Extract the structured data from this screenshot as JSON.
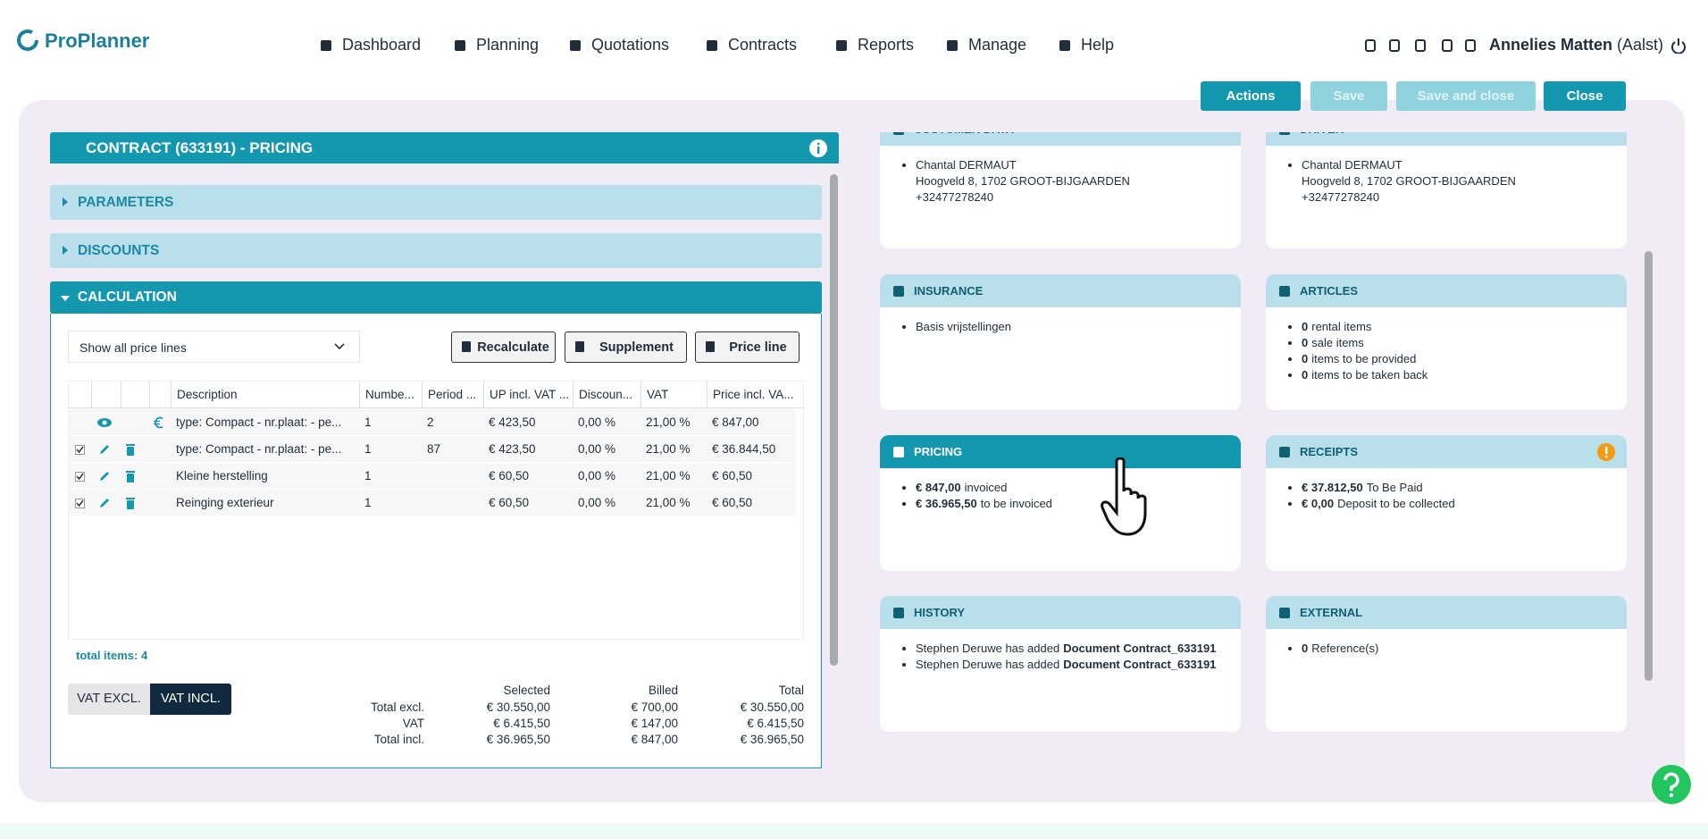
{
  "header": {
    "logo": "ProPlanner",
    "nav": [
      "Dashboard",
      "Planning",
      "Quotations",
      "Contracts",
      "Reports",
      "Manage",
      "Help"
    ],
    "user": {
      "name": "Annelies Matten",
      "location": "(Aalst)"
    }
  },
  "toolbar": {
    "actions": "Actions",
    "save": "Save",
    "save_and_close": "Save and close",
    "close": "Close"
  },
  "panel": {
    "title": "CONTRACT (633191) - PRICING",
    "sections": [
      "PARAMETERS",
      "DISCOUNTS",
      "CALCULATION"
    ],
    "filter": "Show all price lines",
    "buttons": [
      "Recalculate",
      "Supplement",
      "Price line"
    ],
    "table": {
      "columns": [
        "Description",
        "Numbe...",
        "Period ...",
        "UP incl. VAT ...",
        "Discoun...",
        "VAT",
        "Price incl. VA..."
      ],
      "rows": [
        {
          "editable": false,
          "cells": [
            "type: Compact - nr.plaat: - pe...",
            "1",
            "2",
            "€ 423,50",
            "0,00 %",
            "21,00 %",
            "€ 847,00"
          ]
        },
        {
          "editable": true,
          "cells": [
            "type: Compact - nr.plaat: - pe...",
            "1",
            "87",
            "€ 423,50",
            "0,00 %",
            "21,00 %",
            "€ 36.844,50"
          ]
        },
        {
          "editable": true,
          "cells": [
            "Kleine herstelling",
            "1",
            "",
            "€ 60,50",
            "0,00 %",
            "21,00 %",
            "€ 60,50"
          ]
        },
        {
          "editable": true,
          "cells": [
            "Reinging exterieur",
            "1",
            "",
            "€ 60,50",
            "0,00 %",
            "21,00 %",
            "€ 60,50"
          ]
        }
      ]
    },
    "total_items": "total items: 4",
    "vat_toggle": [
      "VAT EXCL.",
      "VAT INCL."
    ],
    "totals": {
      "columns": [
        "Selected",
        "Billed",
        "Total"
      ],
      "rows": [
        [
          "Total excl.",
          "€ 30.550,00",
          "€ 700,00",
          "€ 30.550,00"
        ],
        [
          "VAT",
          "€ 6.415,50",
          "€ 147,00",
          "€ 6.415,50"
        ],
        [
          "Total incl.",
          "€ 36.965,50",
          "€ 847,00",
          "€ 36.965,50"
        ]
      ]
    }
  },
  "cards": [
    {
      "title": "CUSTOMER DATA",
      "items": [
        {
          "lines": [
            "Chantal DERMAUT",
            "Hoogveld 8, 1702 GROOT-BIJGAARDEN",
            "+32477278240"
          ]
        }
      ]
    },
    {
      "title": "DRIVER",
      "items": [
        {
          "lines": [
            "Chantal DERMAUT",
            "Hoogveld 8, 1702 GROOT-BIJGAARDEN",
            "+32477278240"
          ]
        }
      ]
    },
    {
      "title": "INSURANCE",
      "items": [
        [
          {
            "text": "Basis vrijstellingen"
          }
        ]
      ]
    },
    {
      "title": "ARTICLES",
      "items": [
        [
          {
            "bold": "0"
          },
          {
            "text": "rental items"
          }
        ],
        [
          {
            "bold": "0"
          },
          {
            "text": "sale items"
          }
        ],
        [
          {
            "bold": "0"
          },
          {
            "text": "items to be provided"
          }
        ],
        [
          {
            "bold": "0"
          },
          {
            "text": "items to be taken back"
          }
        ]
      ]
    },
    {
      "title": "PRICING",
      "active": true,
      "items": [
        [
          {
            "bold": "€ 847,00"
          },
          {
            "text": "invoiced"
          }
        ],
        [
          {
            "bold": "€ 36.965,50"
          },
          {
            "text": "to be invoiced"
          }
        ]
      ]
    },
    {
      "title": "RECEIPTS",
      "warning": true,
      "items": [
        [
          {
            "bold": "€ 37.812,50"
          },
          {
            "text": "To Be Paid"
          }
        ],
        [
          {
            "bold": "€ 0,00"
          },
          {
            "text": "Deposit to be collected"
          }
        ]
      ]
    },
    {
      "title": "HISTORY",
      "items": [
        [
          {
            "text": "Stephen Deruwe has added"
          },
          {
            "bold": "Document Contract_633191"
          }
        ],
        [
          {
            "text": "Stephen Deruwe has added"
          },
          {
            "bold": "Document Contract_633191"
          }
        ]
      ]
    },
    {
      "title": "EXTERNAL",
      "items": [
        [
          {
            "bold": "0"
          },
          {
            "text": "Reference(s)"
          }
        ]
      ]
    }
  ]
}
